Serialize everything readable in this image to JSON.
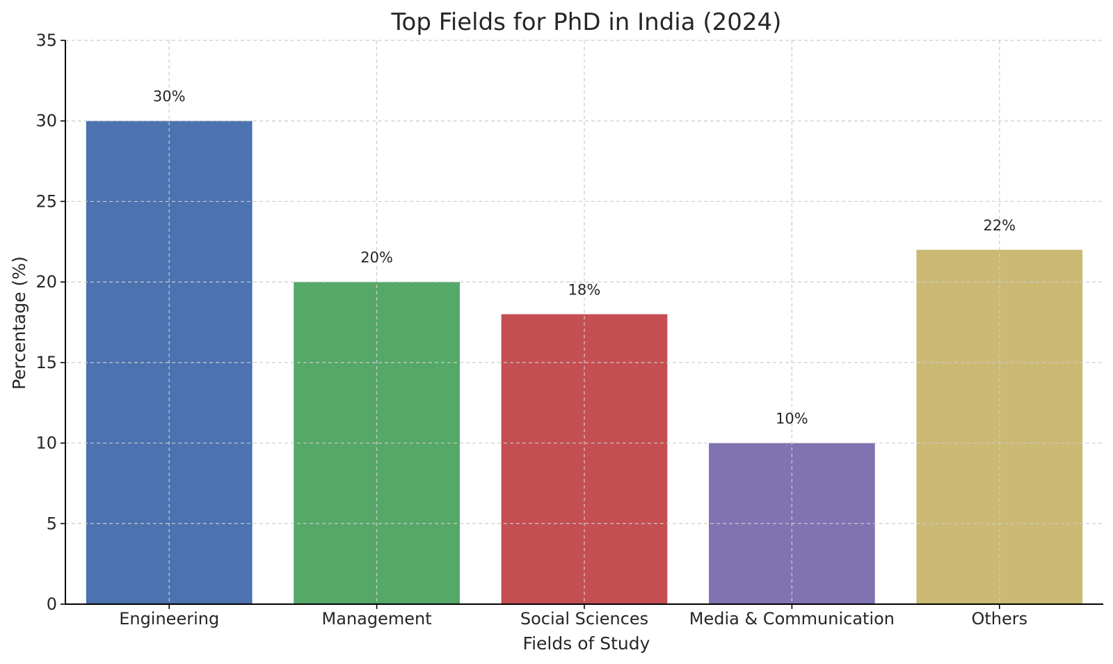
{
  "chart_data": {
    "type": "bar",
    "title": "Top Fields for PhD in India (2024)",
    "xlabel": "Fields of Study",
    "ylabel": "Percentage (%)",
    "categories": [
      "Engineering",
      "Management",
      "Social Sciences",
      "Media & Communication",
      "Others"
    ],
    "values": [
      30,
      20,
      18,
      10,
      22
    ],
    "data_labels": [
      "30%",
      "20%",
      "18%",
      "10%",
      "22%"
    ],
    "colors": [
      "#4c72b0",
      "#55a868",
      "#c44e52",
      "#8172b2",
      "#ccb974"
    ],
    "ylim": [
      0,
      35
    ],
    "yticks": [
      0,
      5,
      10,
      15,
      20,
      25,
      30,
      35
    ],
    "grid": true,
    "legend": "none"
  }
}
